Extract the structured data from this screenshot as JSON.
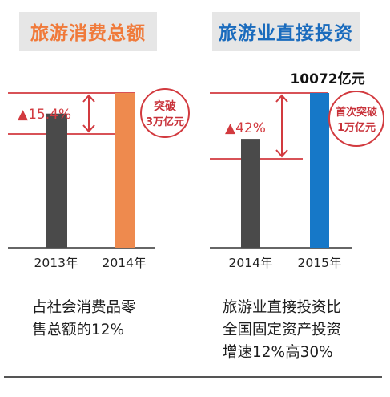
{
  "colors": {
    "title_bg": "#e6e6e6",
    "left_title_color": "#f07a3a",
    "right_title_color": "#1a6bbd",
    "bar_dark": "#4a4a4a",
    "bar_orange": "#ee8a4e",
    "bar_blue": "#1678c8",
    "accent_red": "#d23a3f",
    "axis": "#333333"
  },
  "left": {
    "title": "旅游消费总额",
    "growth_label": "▲15.4%",
    "badge_line1": "突破",
    "badge_line2": "3万亿元",
    "caption": "占社会消费品零\n售总额的12%"
  },
  "right": {
    "title": "旅游业直接投资",
    "top_value_label": "10072亿元",
    "growth_label": "▲42%",
    "badge_line1": "首次突破",
    "badge_line2": "1万亿元",
    "caption": "旅游业直接投资比\n全国固定资产投资\n增速12%高30%"
  },
  "chart_data": [
    {
      "type": "bar",
      "title": "旅游消费总额",
      "categories": [
        "2013年",
        "2014年"
      ],
      "values": [
        2.6,
        3.0
      ],
      "unit": "万亿元",
      "growth": "15.4%",
      "annotation": "突破3万亿元"
    },
    {
      "type": "bar",
      "title": "旅游业直接投资",
      "categories": [
        "2014年",
        "2015年"
      ],
      "values": [
        7093,
        10072
      ],
      "unit": "亿元",
      "growth": "42%",
      "annotation": "首次突破1万亿元",
      "data_labels": [
        "",
        "10072亿元"
      ]
    }
  ]
}
